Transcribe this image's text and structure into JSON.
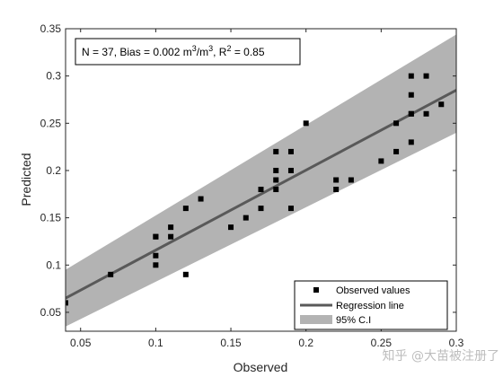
{
  "chart_data": {
    "type": "scatter",
    "xlabel": "Observed",
    "ylabel": "Predicted",
    "xlim": [
      0.04,
      0.3
    ],
    "ylim": [
      0.03,
      0.35
    ],
    "xticks": [
      0.05,
      0.1,
      0.15,
      0.2,
      0.25,
      0.3
    ],
    "xtick_labels": [
      "0.05",
      "0.1",
      "0.15",
      "0.2",
      "0.25",
      "0.3"
    ],
    "yticks": [
      0.05,
      0.1,
      0.15,
      0.2,
      0.25,
      0.3,
      0.35
    ],
    "ytick_labels": [
      "0.05",
      "0.1",
      "0.15",
      "0.2",
      "0.25",
      "0.3",
      "0.35"
    ],
    "grid": false,
    "annotation": {
      "n": "N = 37, Bias = 0.002 m",
      "bias_unit_exp": "3",
      "slash_m": "/m",
      "r2_prefix": ", R",
      "r2_exp": "2",
      "r2_value": " = 0.85"
    },
    "series": [
      {
        "name": "Observed values",
        "kind": "scatter",
        "color": "#000000",
        "x": [
          0.04,
          0.07,
          0.1,
          0.1,
          0.1,
          0.1,
          0.11,
          0.11,
          0.12,
          0.12,
          0.13,
          0.15,
          0.16,
          0.17,
          0.17,
          0.18,
          0.18,
          0.18,
          0.18,
          0.19,
          0.19,
          0.19,
          0.2,
          0.22,
          0.22,
          0.23,
          0.25,
          0.26,
          0.26,
          0.27,
          0.27,
          0.27,
          0.27,
          0.27,
          0.28,
          0.28,
          0.29
        ],
        "y": [
          0.06,
          0.09,
          0.13,
          0.11,
          0.1,
          0.13,
          0.14,
          0.13,
          0.16,
          0.09,
          0.17,
          0.14,
          0.15,
          0.18,
          0.16,
          0.22,
          0.2,
          0.19,
          0.18,
          0.22,
          0.2,
          0.16,
          0.25,
          0.19,
          0.18,
          0.19,
          0.21,
          0.22,
          0.25,
          0.3,
          0.28,
          0.26,
          0.23,
          0.26,
          0.3,
          0.26,
          0.27
        ]
      },
      {
        "name": "Regression line",
        "kind": "line",
        "color": "#595959",
        "x": [
          0.04,
          0.3
        ],
        "y": [
          0.065,
          0.285
        ]
      },
      {
        "name": "95% C.I",
        "kind": "band",
        "color": "#b3b3b3",
        "x": [
          0.04,
          0.3
        ],
        "lower": [
          0.035,
          0.24
        ],
        "upper": [
          0.095,
          0.344
        ]
      }
    ],
    "legend": {
      "placement": "bottom-right"
    }
  },
  "watermark": "知乎 @大苗被注册了"
}
